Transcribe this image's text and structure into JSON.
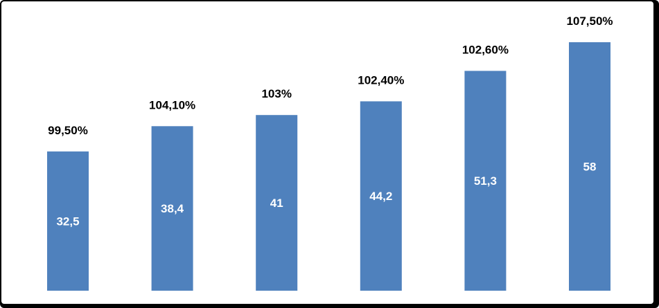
{
  "chart_data": {
    "type": "bar",
    "title": "",
    "xlabel": "",
    "ylabel": "",
    "categories": [
      "",
      "",
      "",
      "",
      "",
      ""
    ],
    "values": [
      32.5,
      38.4,
      41,
      44.2,
      51.3,
      58
    ],
    "value_labels": [
      "32,5",
      "38,4",
      "41",
      "44,2",
      "51,3",
      "58"
    ],
    "percent_labels": [
      "99,50%",
      "104,10%",
      "103%",
      "102,40%",
      "102,60%",
      "107,50%"
    ],
    "ylim": [
      0,
      63
    ],
    "grid": false,
    "legend": "none",
    "bar_color": "#4F81BD",
    "text_color": "#000000",
    "inner_label_color": "#FFFFFF",
    "frame_color": "#000000"
  }
}
